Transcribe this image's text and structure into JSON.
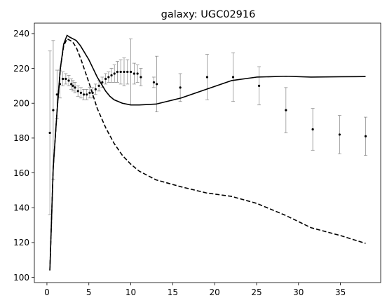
{
  "chart_data": {
    "type": "scatter",
    "title": "galaxy: UGC02916",
    "xlabel": "",
    "ylabel": "",
    "xlim": [
      -1.5,
      39.8
    ],
    "ylim": [
      97,
      246
    ],
    "x_ticks": [
      0,
      5,
      10,
      15,
      20,
      25,
      30,
      35
    ],
    "y_ticks": [
      100,
      120,
      140,
      160,
      180,
      200,
      220,
      240
    ],
    "grid": false,
    "legend": "none",
    "colors": {
      "points": "#000000",
      "errorbars": "#808080",
      "lines": "#000000"
    },
    "series": [
      {
        "kind": "errorbar-points",
        "x": [
          0.35,
          0.75,
          1.2,
          1.55,
          1.9,
          2.25,
          2.6,
          2.9,
          3.1,
          3.35,
          3.7,
          4.05,
          4.4,
          4.75,
          5.1,
          5.45,
          5.8,
          6.2,
          6.6,
          7.0,
          7.35,
          7.7,
          8.05,
          8.4,
          8.8,
          9.2,
          9.6,
          10.0,
          10.4,
          10.8,
          11.2,
          12.75,
          13.1,
          15.9,
          19.1,
          22.2,
          25.3,
          28.5,
          31.7,
          34.9,
          38.0
        ],
        "y": [
          183,
          196,
          205,
          211,
          214,
          214,
          213,
          211,
          210,
          209,
          207,
          206,
          205,
          205,
          206,
          206,
          208,
          210,
          212,
          214,
          215,
          216,
          217,
          218,
          218,
          218,
          218,
          218,
          217,
          217,
          215,
          212,
          211,
          209,
          215,
          215,
          210,
          196,
          185,
          182,
          181
        ],
        "yerr": [
          47,
          40,
          14,
          8,
          4,
          3,
          3,
          3,
          3,
          3,
          3,
          3,
          3,
          3,
          3,
          3,
          3,
          3,
          3,
          3,
          3,
          4,
          5,
          6,
          7,
          8,
          7,
          19,
          6,
          5,
          5,
          3,
          16,
          8,
          13,
          14,
          11,
          13,
          12,
          11,
          11
        ]
      },
      {
        "kind": "line",
        "style": "solid",
        "x": [
          0.35,
          0.75,
          1.2,
          1.6,
          2.0,
          2.4,
          2.7,
          3.1,
          3.5,
          4.0,
          4.5,
          5.0,
          5.5,
          6.0,
          6.5,
          7.0,
          7.5,
          8.0,
          9.0,
          10.0,
          11.0,
          13.0,
          16.0,
          19.0,
          22.0,
          25.0,
          28.5,
          31.5,
          35.0,
          38.0
        ],
        "y": [
          104,
          163,
          195,
          220,
          234,
          239,
          238,
          237,
          236,
          233,
          229,
          225,
          220,
          215,
          211,
          207,
          204,
          202,
          200,
          199,
          199,
          199.5,
          203,
          208,
          213,
          215,
          215.5,
          215,
          215.2,
          215.3
        ]
      },
      {
        "kind": "line",
        "style": "dashed",
        "x": [
          0.35,
          0.75,
          1.2,
          1.6,
          2.0,
          2.4,
          2.8,
          3.1,
          3.5,
          4.0,
          4.5,
          5.0,
          6.0,
          7.0,
          8.0,
          9.0,
          10.0,
          11.0,
          13.0,
          16.0,
          19.0,
          22.0,
          25.0,
          28.5,
          31.5,
          35.0,
          38.0
        ],
        "y": [
          104,
          163,
          195,
          220,
          233,
          237,
          236,
          235,
          232,
          226,
          219,
          212,
          197,
          186,
          177,
          170,
          165,
          161,
          156,
          152,
          148.5,
          146.5,
          142.5,
          135.5,
          128.5,
          124,
          119.5
        ]
      }
    ]
  }
}
